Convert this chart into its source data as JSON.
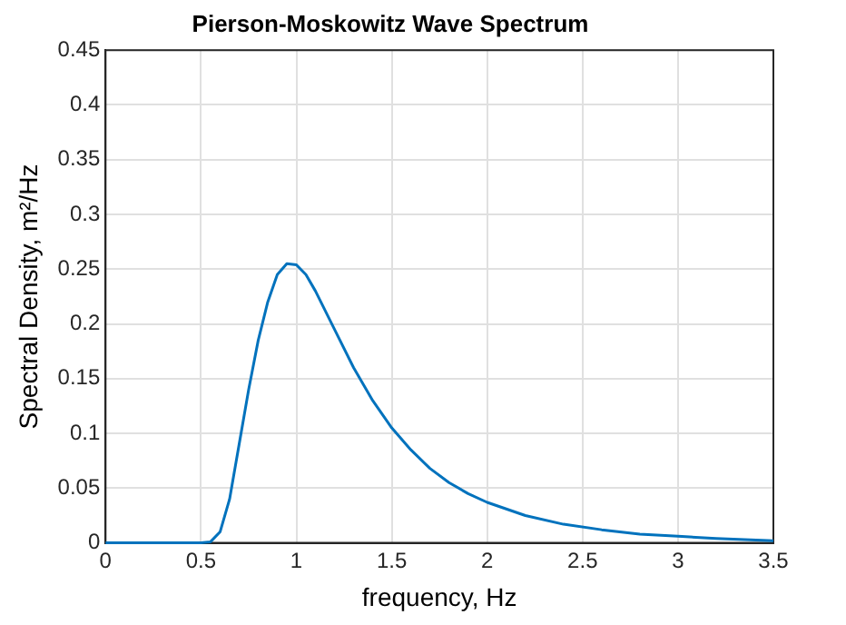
{
  "chart_data": {
    "type": "line",
    "title": "Pierson-Moskowitz Wave Spectrum",
    "xlabel": "frequency, Hz",
    "ylabel": "Spectral Density, m²/Hz",
    "x": [
      0,
      0.5,
      0.55,
      0.6,
      0.65,
      0.7,
      0.75,
      0.8,
      0.85,
      0.9,
      0.95,
      1.0,
      1.05,
      1.1,
      1.2,
      1.3,
      1.4,
      1.5,
      1.6,
      1.7,
      1.8,
      1.9,
      2.0,
      2.2,
      2.4,
      2.6,
      2.8,
      3.0,
      3.2,
      3.5
    ],
    "series": [
      {
        "color": "#0072bd",
        "values": [
          0,
          0,
          0.001,
          0.01,
          0.04,
          0.09,
          0.14,
          0.185,
          0.22,
          0.245,
          0.255,
          0.254,
          0.245,
          0.23,
          0.195,
          0.16,
          0.13,
          0.105,
          0.085,
          0.068,
          0.055,
          0.045,
          0.037,
          0.025,
          0.017,
          0.012,
          0.008,
          0.006,
          0.004,
          0.002
        ]
      }
    ],
    "xlim": [
      0,
      3.5
    ],
    "xticks": [
      0,
      0.5,
      1,
      1.5,
      2,
      2.5,
      3,
      3.5
    ],
    "ylim": [
      0,
      0.45
    ],
    "yticks": [
      0,
      0.05,
      0.1,
      0.15,
      0.2,
      0.25,
      0.3,
      0.35,
      0.4,
      0.45
    ],
    "grid": true,
    "legend": false,
    "marker": "none",
    "line_style": "solid"
  }
}
